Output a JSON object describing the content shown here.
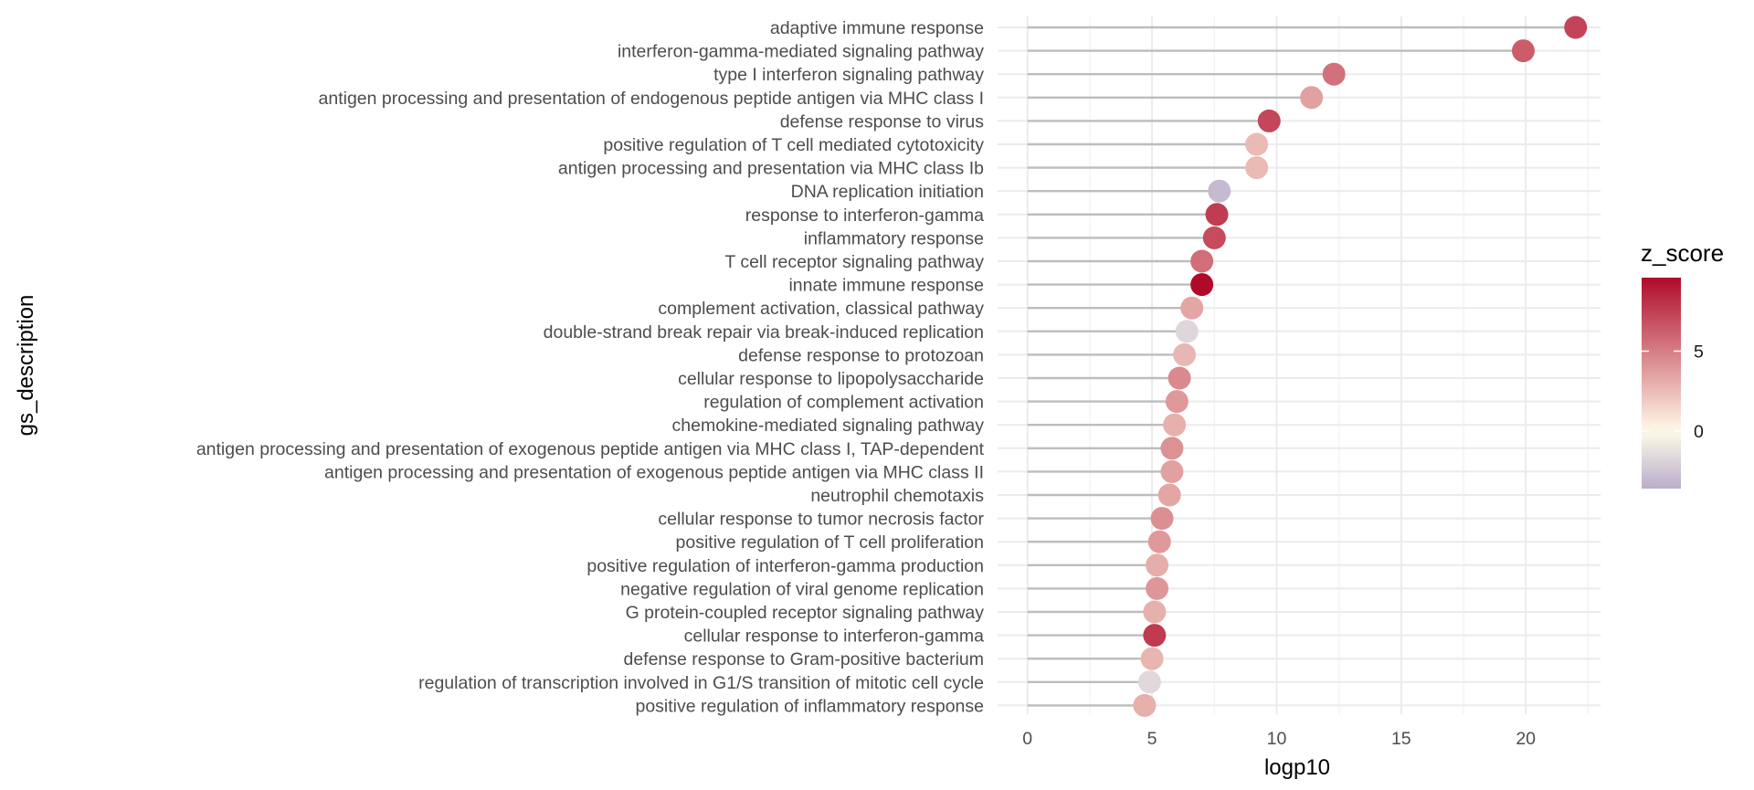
{
  "chart_data": {
    "type": "scatter",
    "subtype": "lollipop",
    "xlabel": "logp10",
    "ylabel": "gs_description",
    "xlim": [
      -1.2,
      23
    ],
    "xticks": [
      0,
      5,
      10,
      15,
      20
    ],
    "grid": true,
    "color_scale": {
      "title": "z_score",
      "min": -3.6,
      "max": 9.6,
      "mid": 0,
      "ticks": [
        0,
        5
      ],
      "low_color": "#b9adca",
      "mid_color": "#fffbe8",
      "high_color": "#b00a2a"
    },
    "points": [
      {
        "label": "adaptive immune response",
        "x": 22.0,
        "z": 7.3
      },
      {
        "label": "interferon-gamma-mediated signaling pathway",
        "x": 19.9,
        "z": 6.3
      },
      {
        "label": "type I interferon signaling pathway",
        "x": 12.3,
        "z": 5.5
      },
      {
        "label": "antigen processing and presentation of endogenous peptide antigen via MHC class I",
        "x": 11.4,
        "z": 3.6
      },
      {
        "label": "defense response to virus",
        "x": 9.7,
        "z": 7.2
      },
      {
        "label": "positive regulation of T cell mediated cytotoxicity",
        "x": 9.2,
        "z": 2.6
      },
      {
        "label": "antigen processing and presentation via MHC class Ib",
        "x": 9.2,
        "z": 2.6
      },
      {
        "label": "DNA replication initiation",
        "x": 7.7,
        "z": -3.0
      },
      {
        "label": "response to interferon-gamma",
        "x": 7.6,
        "z": 7.6
      },
      {
        "label": "inflammatory response",
        "x": 7.5,
        "z": 7.0
      },
      {
        "label": "T cell receptor signaling pathway",
        "x": 7.0,
        "z": 5.6
      },
      {
        "label": "innate immune response",
        "x": 7.0,
        "z": 9.6
      },
      {
        "label": "complement activation, classical pathway",
        "x": 6.6,
        "z": 3.4
      },
      {
        "label": "double-strand break repair via break-induced replication",
        "x": 6.4,
        "z": -1.7
      },
      {
        "label": "defense response to protozoan",
        "x": 6.3,
        "z": 2.7
      },
      {
        "label": "cellular response to lipopolysaccharide",
        "x": 6.1,
        "z": 4.5
      },
      {
        "label": "regulation of complement activation",
        "x": 6.0,
        "z": 3.9
      },
      {
        "label": "chemokine-mediated signaling pathway",
        "x": 5.9,
        "z": 3.0
      },
      {
        "label": "antigen processing and presentation of exogenous peptide antigen via MHC class I, TAP-dependent",
        "x": 5.8,
        "z": 4.2
      },
      {
        "label": "antigen processing and presentation of exogenous peptide antigen via MHC class II",
        "x": 5.8,
        "z": 3.6
      },
      {
        "label": "neutrophil chemotaxis",
        "x": 5.7,
        "z": 3.4
      },
      {
        "label": "cellular response to tumor necrosis factor",
        "x": 5.4,
        "z": 4.3
      },
      {
        "label": "positive regulation of T cell proliferation",
        "x": 5.3,
        "z": 3.9
      },
      {
        "label": "positive regulation of interferon-gamma production",
        "x": 5.2,
        "z": 3.1
      },
      {
        "label": "negative regulation of viral genome replication",
        "x": 5.2,
        "z": 4.0
      },
      {
        "label": "G protein-coupled receptor signaling pathway",
        "x": 5.1,
        "z": 3.0
      },
      {
        "label": "cellular response to interferon-gamma",
        "x": 5.1,
        "z": 7.7
      },
      {
        "label": "defense response to Gram-positive bacterium",
        "x": 5.0,
        "z": 2.8
      },
      {
        "label": "regulation of transcription involved in G1/S transition of mitotic cell cycle",
        "x": 4.9,
        "z": -1.6
      },
      {
        "label": "positive regulation of inflammatory response",
        "x": 4.7,
        "z": 3.0
      }
    ]
  }
}
